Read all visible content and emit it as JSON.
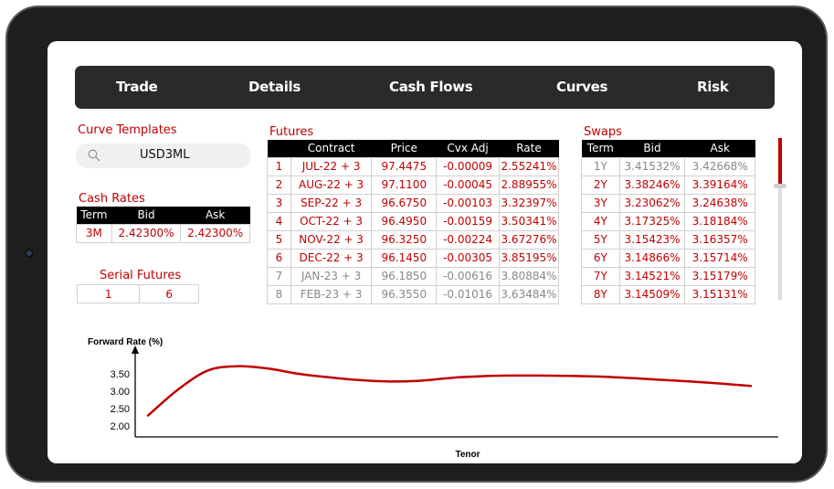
{
  "nav": {
    "tabs": [
      {
        "label": "Trade"
      },
      {
        "label": "Details"
      },
      {
        "label": "Cash Flows"
      },
      {
        "label": "Curves"
      },
      {
        "label": "Risk"
      }
    ]
  },
  "curve_templates": {
    "title": "Curve Templates",
    "search_value": "USD3ML"
  },
  "cash_rates": {
    "title": "Cash Rates",
    "headers": [
      "Term",
      "Bid",
      "Ask"
    ],
    "rows": [
      [
        "3M",
        "2.42300%",
        "2.42300%"
      ]
    ]
  },
  "serial_futures": {
    "title": "Serial Futures",
    "values": [
      "1",
      "6"
    ]
  },
  "futures": {
    "title": "Futures",
    "headers": [
      "",
      "Contract",
      "Price",
      "Cvx Adj",
      "Rate"
    ],
    "rows": [
      {
        "n": "1",
        "contract": "JUL-22 + 3",
        "price": "97.4475",
        "cvx": "-0.00009",
        "rate": "2.55241%",
        "muted": false
      },
      {
        "n": "2",
        "contract": "AUG-22 + 3",
        "price": "97.1100",
        "cvx": "-0.00045",
        "rate": "2.88955%",
        "muted": false
      },
      {
        "n": "3",
        "contract": "SEP-22 + 3",
        "price": "96.6750",
        "cvx": "-0.00103",
        "rate": "3.32397%",
        "muted": false
      },
      {
        "n": "4",
        "contract": "OCT-22 + 3",
        "price": "96.4950",
        "cvx": "-0.00159",
        "rate": "3.50341%",
        "muted": false
      },
      {
        "n": "5",
        "contract": "NOV-22 + 3",
        "price": "96.3250",
        "cvx": "-0.00224",
        "rate": "3.67276%",
        "muted": false
      },
      {
        "n": "6",
        "contract": "DEC-22 + 3",
        "price": "96.1450",
        "cvx": "-0.00305",
        "rate": "3.85195%",
        "muted": false
      },
      {
        "n": "7",
        "contract": "JAN-23 + 3",
        "price": "96.1850",
        "cvx": "-0.00616",
        "rate": "3.80884%",
        "muted": true
      },
      {
        "n": "8",
        "contract": "FEB-23 + 3",
        "price": "96.3550",
        "cvx": "-0.01016",
        "rate": "3.63484%",
        "muted": true
      }
    ]
  },
  "swaps": {
    "title": "Swaps",
    "headers": [
      "Term",
      "Bid",
      "Ask"
    ],
    "rows": [
      {
        "term": "1Y",
        "bid": "3.41532%",
        "ask": "3.42668%",
        "muted": true
      },
      {
        "term": "2Y",
        "bid": "3.38246%",
        "ask": "3.39164%",
        "muted": false
      },
      {
        "term": "3Y",
        "bid": "3.23062%",
        "ask": "3.24638%",
        "muted": false
      },
      {
        "term": "4Y",
        "bid": "3.17325%",
        "ask": "3.18184%",
        "muted": false
      },
      {
        "term": "5Y",
        "bid": "3.15423%",
        "ask": "3.16357%",
        "muted": false
      },
      {
        "term": "6Y",
        "bid": "3.14866%",
        "ask": "3.15714%",
        "muted": false
      },
      {
        "term": "7Y",
        "bid": "3.14521%",
        "ask": "3.15179%",
        "muted": false
      },
      {
        "term": "8Y",
        "bid": "3.14509%",
        "ask": "3.15131%",
        "muted": false
      }
    ]
  },
  "swaps_scroll": {
    "position": 0.3
  },
  "chart": {
    "title": "Forward Rate (%)",
    "xlabel": "Tenor",
    "yticks": [
      "3.50",
      "3.00",
      "2.50",
      "2.00"
    ]
  },
  "chart_data": {
    "type": "line",
    "title": "Forward Rate (%)",
    "xlabel": "Tenor",
    "ylabel": "",
    "yticks": [
      3.5,
      3.0,
      2.5,
      2.0
    ],
    "ylim": [
      1.8,
      3.8
    ],
    "series": [
      {
        "values": [
          2.3,
          3.05,
          3.6,
          3.72,
          3.65,
          3.5,
          3.4,
          3.32,
          3.28,
          3.3,
          3.38,
          3.43,
          3.45,
          3.45,
          3.44,
          3.42,
          3.38,
          3.33,
          3.28,
          3.22,
          3.15
        ]
      }
    ]
  },
  "colors": {
    "accent": "#c00000",
    "nav_bg": "#2a2a2a",
    "muted_text": "#888888"
  }
}
